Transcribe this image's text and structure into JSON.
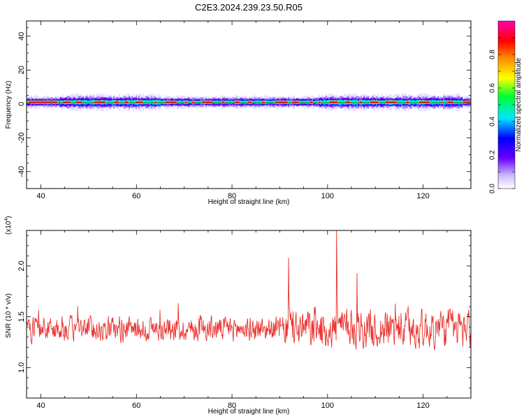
{
  "title": "C2E3.2024.239.23.50.R05",
  "chart_data": [
    {
      "type": "heatmap",
      "xlabel": "Height of straight line (km)",
      "ylabel": "Frequency (Hz)",
      "xlim": [
        37,
        130
      ],
      "ylim": [
        -50,
        49
      ],
      "xticks": [
        40,
        60,
        80,
        100,
        120
      ],
      "yticks": [
        -40,
        -20,
        0,
        20,
        40
      ],
      "band_center_hz": 1,
      "colorbar": {
        "label": "Normalized spectral amplitude",
        "ticks": [
          "0.0",
          "0.2",
          "0.4",
          "0.6",
          "0.8"
        ],
        "range": [
          0,
          1
        ]
      }
    },
    {
      "type": "line",
      "xlabel": "Height of straight line (km)",
      "ylabel": "SNR (10 * v/v)",
      "scale_note": "(x10",
      "scale_exp": "4",
      "xlim": [
        37,
        130
      ],
      "ylim": [
        0.7,
        2.35
      ],
      "xticks": [
        40,
        60,
        80,
        100,
        120
      ],
      "yticks": [
        "1.0",
        "1.5",
        "2.0"
      ],
      "color": "#e8322e",
      "series_points": 1000,
      "y_mean": 1.38
    }
  ]
}
